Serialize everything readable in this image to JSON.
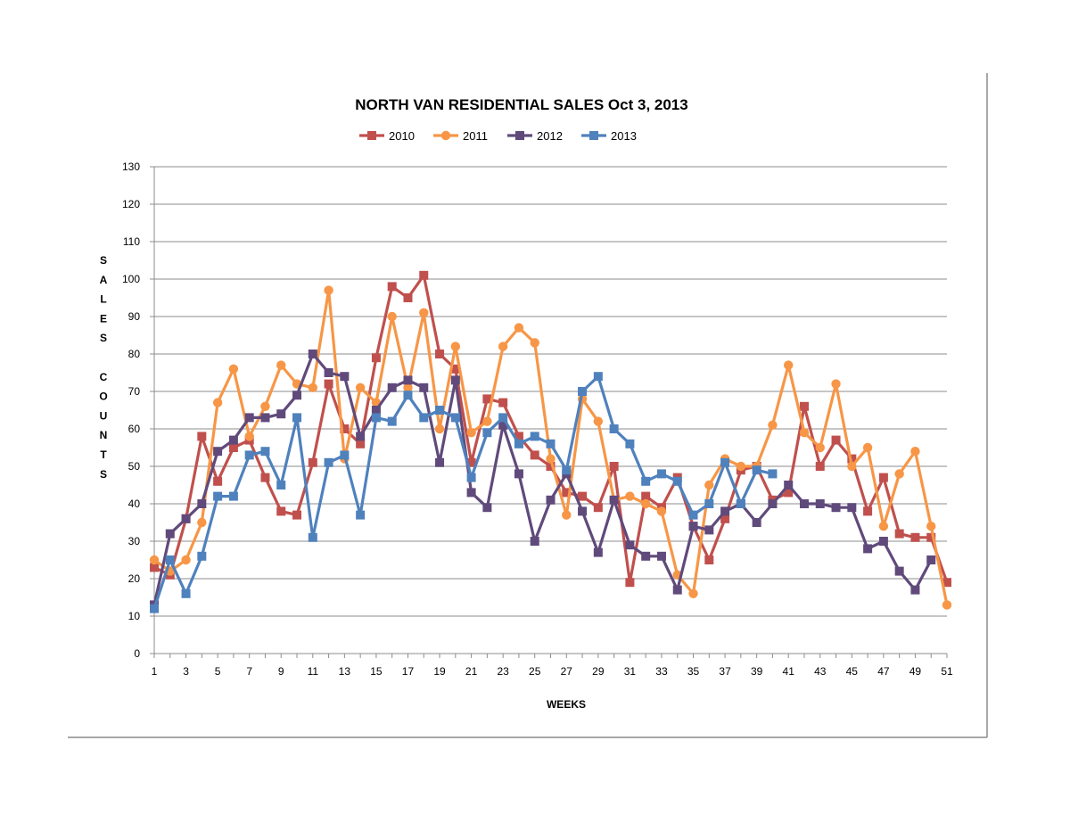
{
  "chart_data": {
    "type": "line",
    "title": "NORTH VAN RESIDENTIAL SALES   Oct 3, 2013",
    "xlabel": "WEEKS",
    "ylabel": "SALES COUNTS",
    "ylabel_rows": [
      "S",
      "A",
      "L",
      "E",
      "S",
      "",
      "C",
      "O",
      "U",
      "N",
      "T",
      "S"
    ],
    "ylim": [
      0,
      130
    ],
    "yticks": [
      0,
      10,
      20,
      30,
      40,
      50,
      60,
      70,
      80,
      90,
      100,
      110,
      120,
      130
    ],
    "xlim": [
      1,
      51
    ],
    "xtick_labels": [
      "1",
      "3",
      "5",
      "7",
      "9",
      "11",
      "13",
      "15",
      "17",
      "19",
      "21",
      "23",
      "25",
      "27",
      "29",
      "31",
      "33",
      "35",
      "37",
      "39",
      "41",
      "43",
      "45",
      "47",
      "49",
      "51"
    ],
    "grid": "horizontal",
    "legend_position": "top",
    "series": [
      {
        "name": "2010",
        "color": "#C0504D",
        "marker": "square",
        "values": [
          23,
          21,
          36,
          58,
          46,
          55,
          57,
          47,
          38,
          37,
          51,
          72,
          60,
          56,
          79,
          98,
          95,
          101,
          80,
          76,
          51,
          68,
          67,
          58,
          53,
          50,
          43,
          42,
          39,
          50,
          19,
          42,
          39,
          47,
          34,
          25,
          36,
          49,
          50,
          41,
          43,
          66,
          50,
          57,
          52,
          38,
          47,
          32,
          31,
          31,
          19
        ]
      },
      {
        "name": "2011",
        "color": "#F79646",
        "marker": "circle",
        "values": [
          25,
          22,
          25,
          35,
          67,
          76,
          58,
          66,
          77,
          72,
          71,
          97,
          52,
          71,
          67,
          90,
          71,
          91,
          60,
          82,
          59,
          62,
          82,
          87,
          83,
          52,
          37,
          68,
          62,
          41,
          42,
          40,
          38,
          21,
          16,
          45,
          52,
          50,
          50,
          61,
          77,
          59,
          55,
          72,
          50,
          55,
          34,
          48,
          54,
          34,
          13
        ]
      },
      {
        "name": "2012",
        "color": "#604A7B",
        "marker": "square",
        "values": [
          13,
          32,
          36,
          40,
          54,
          57,
          63,
          63,
          64,
          69,
          80,
          75,
          74,
          58,
          65,
          71,
          73,
          71,
          51,
          73,
          43,
          39,
          61,
          48,
          30,
          41,
          48,
          38,
          27,
          41,
          29,
          26,
          26,
          17,
          34,
          33,
          38,
          40,
          35,
          40,
          45,
          40,
          40,
          39,
          39,
          28,
          30,
          22,
          17,
          25
        ]
      },
      {
        "name": "2013",
        "color": "#4F81BD",
        "marker": "square",
        "values": [
          12,
          25,
          16,
          26,
          42,
          42,
          53,
          54,
          45,
          63,
          31,
          51,
          53,
          37,
          63,
          62,
          69,
          63,
          65,
          63,
          47,
          59,
          63,
          56,
          58,
          56,
          49,
          70,
          74,
          60,
          56,
          46,
          48,
          46,
          37,
          40,
          51,
          40,
          49,
          48
        ]
      }
    ]
  }
}
